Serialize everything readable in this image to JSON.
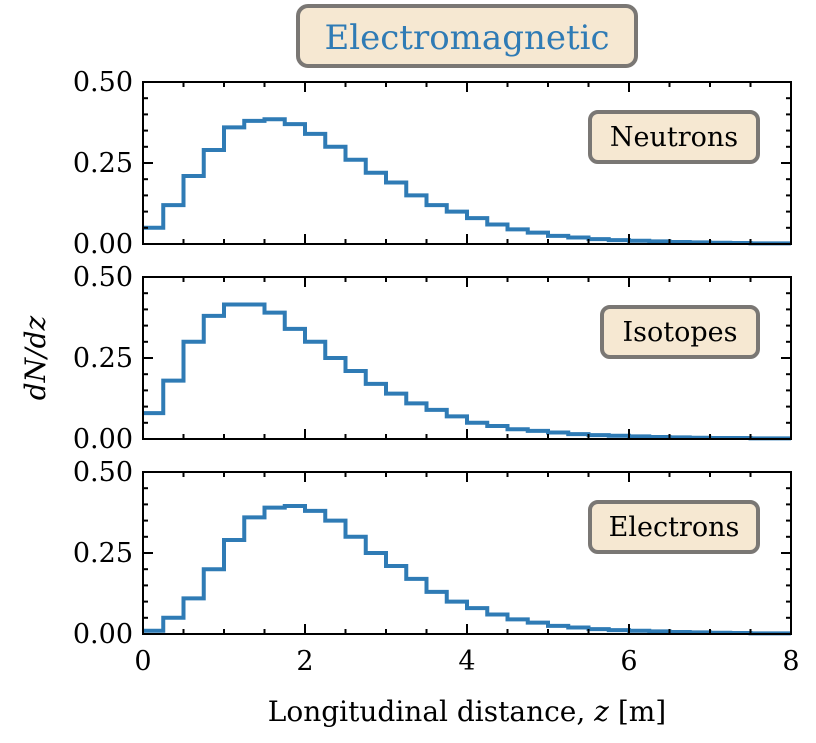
{
  "chart_data": {
    "type": "step-histogram",
    "title": "Electromagnetic",
    "xlabel": "Longitudinal distance, z [m]",
    "xlabel_parts": {
      "prefix": "Longitudinal distance, ",
      "var": "z",
      "suffix": " [m]"
    },
    "ylabel": "dN/dz",
    "xlim": [
      0,
      8
    ],
    "ylim": [
      0,
      0.5
    ],
    "xticks": [
      0,
      2,
      4,
      6,
      8
    ],
    "xtick_labels": [
      "0",
      "2",
      "4",
      "6",
      "8"
    ],
    "yticks": [
      0,
      0.25,
      0.5
    ],
    "ytick_labels": [
      "0.00",
      "0.25",
      "0.50"
    ],
    "bin_edges": [
      0,
      0.25,
      0.5,
      0.75,
      1.0,
      1.25,
      1.5,
      1.75,
      2.0,
      2.25,
      2.5,
      2.75,
      3.0,
      3.25,
      3.5,
      3.75,
      4.0,
      4.25,
      4.5,
      4.75,
      5.0,
      5.25,
      5.5,
      5.75,
      6.0,
      6.25,
      6.5,
      6.75,
      7.0,
      7.25,
      7.5,
      7.75,
      8.0
    ],
    "series": [
      {
        "name": "Neutrons",
        "values": [
          0.05,
          0.12,
          0.21,
          0.29,
          0.36,
          0.38,
          0.385,
          0.37,
          0.34,
          0.3,
          0.26,
          0.22,
          0.19,
          0.15,
          0.12,
          0.1,
          0.08,
          0.06,
          0.045,
          0.035,
          0.025,
          0.02,
          0.015,
          0.012,
          0.01,
          0.008,
          0.006,
          0.005,
          0.004,
          0.003,
          0.002,
          0.002
        ]
      },
      {
        "name": "Isotopes",
        "values": [
          0.08,
          0.18,
          0.3,
          0.38,
          0.415,
          0.415,
          0.39,
          0.34,
          0.3,
          0.25,
          0.21,
          0.17,
          0.14,
          0.11,
          0.09,
          0.07,
          0.05,
          0.04,
          0.03,
          0.025,
          0.02,
          0.015,
          0.012,
          0.01,
          0.008,
          0.006,
          0.005,
          0.004,
          0.003,
          0.003,
          0.002,
          0.002
        ]
      },
      {
        "name": "Electrons",
        "values": [
          0.01,
          0.05,
          0.11,
          0.2,
          0.29,
          0.36,
          0.39,
          0.395,
          0.38,
          0.35,
          0.3,
          0.25,
          0.21,
          0.17,
          0.13,
          0.1,
          0.08,
          0.06,
          0.045,
          0.035,
          0.025,
          0.02,
          0.015,
          0.012,
          0.01,
          0.008,
          0.006,
          0.005,
          0.004,
          0.003,
          0.002,
          0.002
        ]
      }
    ]
  },
  "colors": {
    "line": "#2f7bb5",
    "title_text": "#2f7bb5",
    "box_fill": "#f6e8d2",
    "box_stroke": "#7a7774",
    "axis": "#000000"
  }
}
